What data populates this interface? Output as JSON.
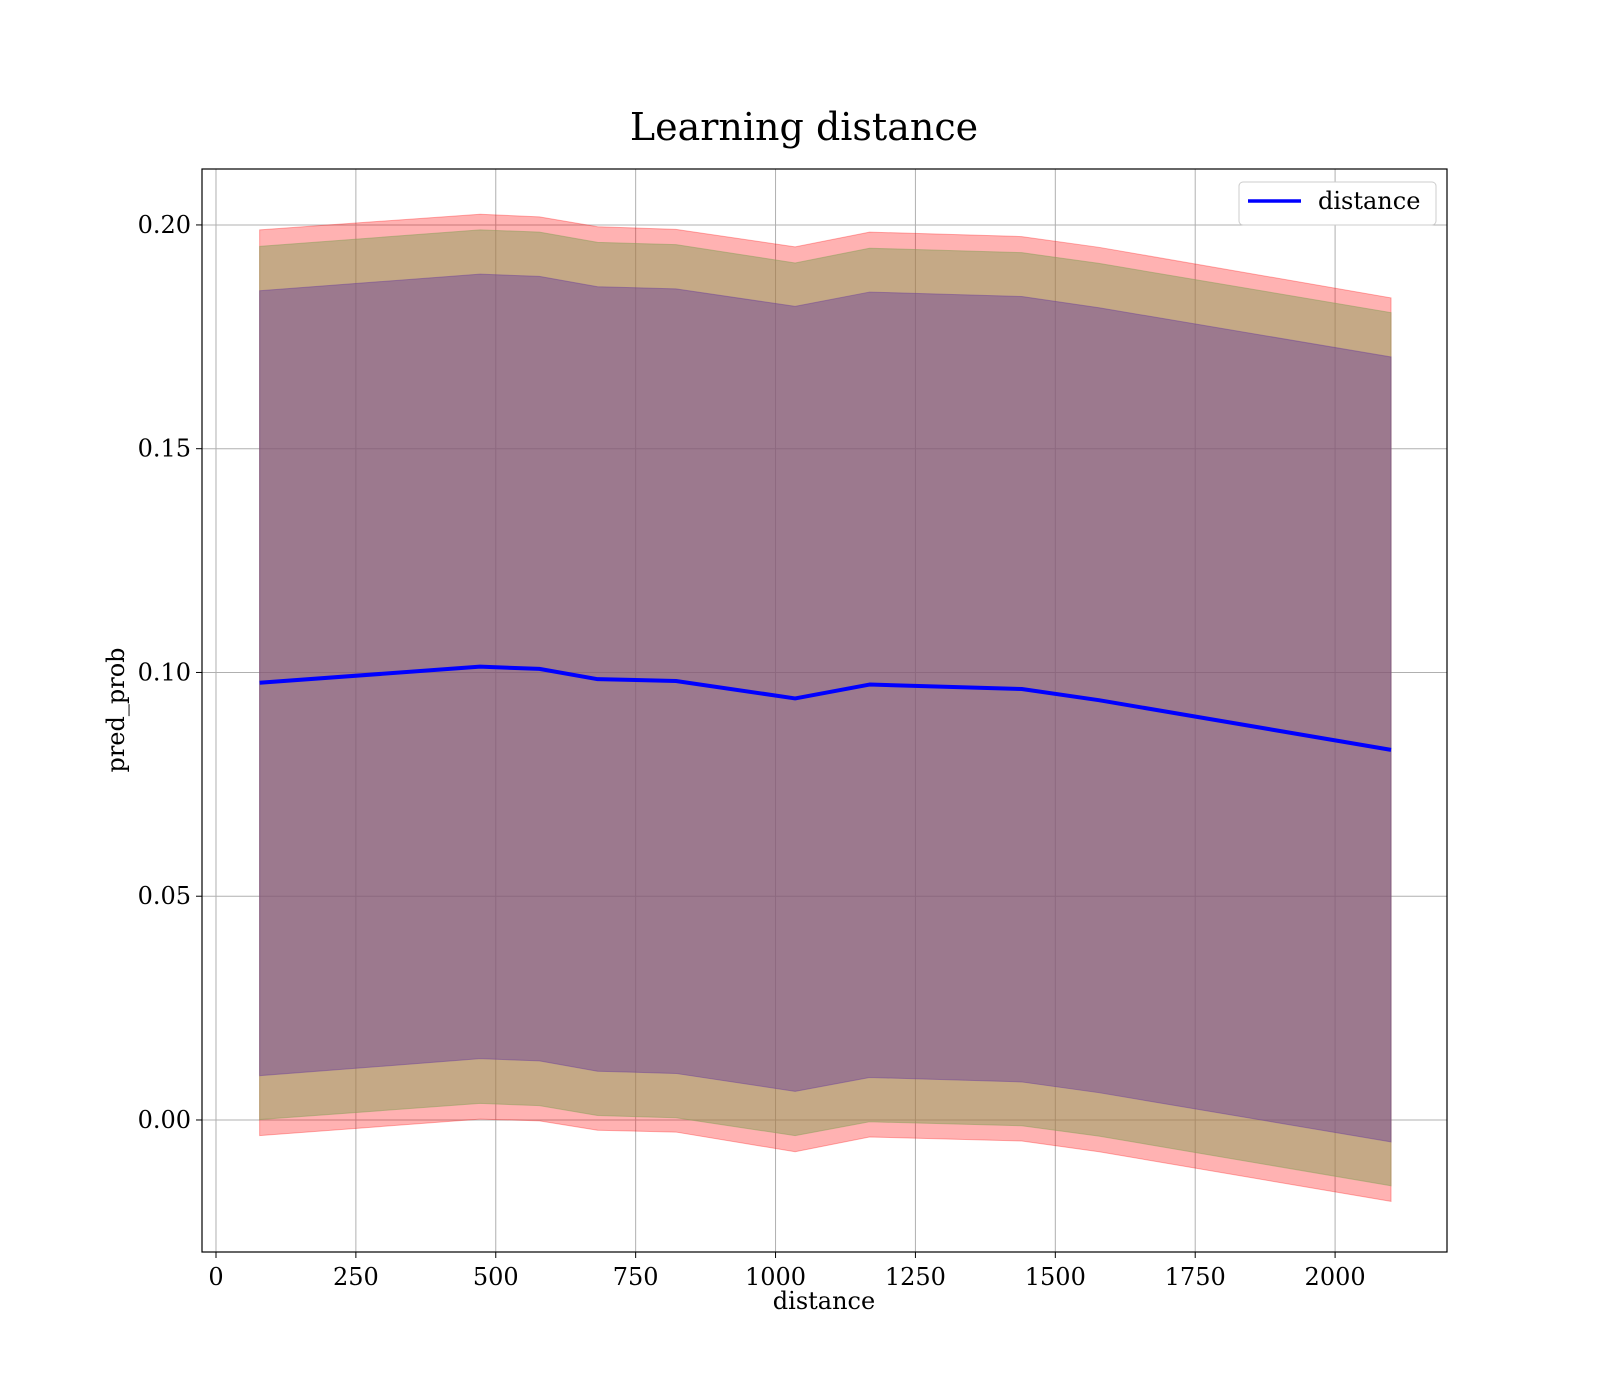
{
  "chart_data": {
    "type": "line",
    "title": "Learning distance",
    "xlabel": "distance",
    "ylabel": "pred_prob",
    "xlim": [
      -25,
      2200
    ],
    "ylim": [
      -0.0295,
      0.2125
    ],
    "xticks": [
      0,
      250,
      500,
      750,
      1000,
      1250,
      1500,
      1750,
      2000
    ],
    "yticks": [
      0.0,
      0.05,
      0.1,
      0.15,
      0.2
    ],
    "xtick_labels": [
      "0",
      "250",
      "500",
      "750",
      "1000",
      "1250",
      "1500",
      "1750",
      "2000"
    ],
    "ytick_labels": [
      "0.00",
      "0.05",
      "0.10",
      "0.15",
      "0.20"
    ],
    "grid": true,
    "legend_position": "top-right",
    "x": [
      78,
      472,
      578,
      682,
      822,
      1035,
      1168,
      1440,
      1578,
      2100
    ],
    "series": [
      {
        "name": "distance",
        "color": "#0000ff",
        "values": [
          0.0977,
          0.1013,
          0.1008,
          0.0985,
          0.0981,
          0.0942,
          0.0973,
          0.0963,
          0.0938,
          0.0827
        ]
      }
    ],
    "bands": [
      {
        "color": "#ff0000",
        "opacity": 0.3,
        "lower": [
          -0.0035,
          0.0002,
          -0.0002,
          -0.0023,
          -0.0027,
          -0.0071,
          -0.0038,
          -0.0047,
          -0.0071,
          -0.0182
        ],
        "upper": [
          0.1989,
          0.2024,
          0.2018,
          0.1996,
          0.199,
          0.1951,
          0.1984,
          0.1974,
          0.195,
          0.1837
        ]
      },
      {
        "color": "#8ca05a",
        "opacity": 0.5,
        "lower": [
          0.0001,
          0.0037,
          0.0032,
          0.001,
          0.0005,
          -0.0035,
          -0.0004,
          -0.0013,
          -0.0036,
          -0.0147
        ],
        "upper": [
          0.1952,
          0.1989,
          0.1984,
          0.1961,
          0.1956,
          0.1915,
          0.1948,
          0.1938,
          0.1914,
          0.1804
        ]
      },
      {
        "color": "#6a3d9a",
        "opacity": 0.45,
        "lower": [
          0.0099,
          0.0137,
          0.0132,
          0.0109,
          0.0104,
          0.0064,
          0.0095,
          0.0085,
          0.0061,
          -0.0049
        ],
        "upper": [
          0.1853,
          0.189,
          0.1885,
          0.1862,
          0.1857,
          0.1818,
          0.185,
          0.184,
          0.1815,
          0.1705
        ]
      }
    ]
  }
}
